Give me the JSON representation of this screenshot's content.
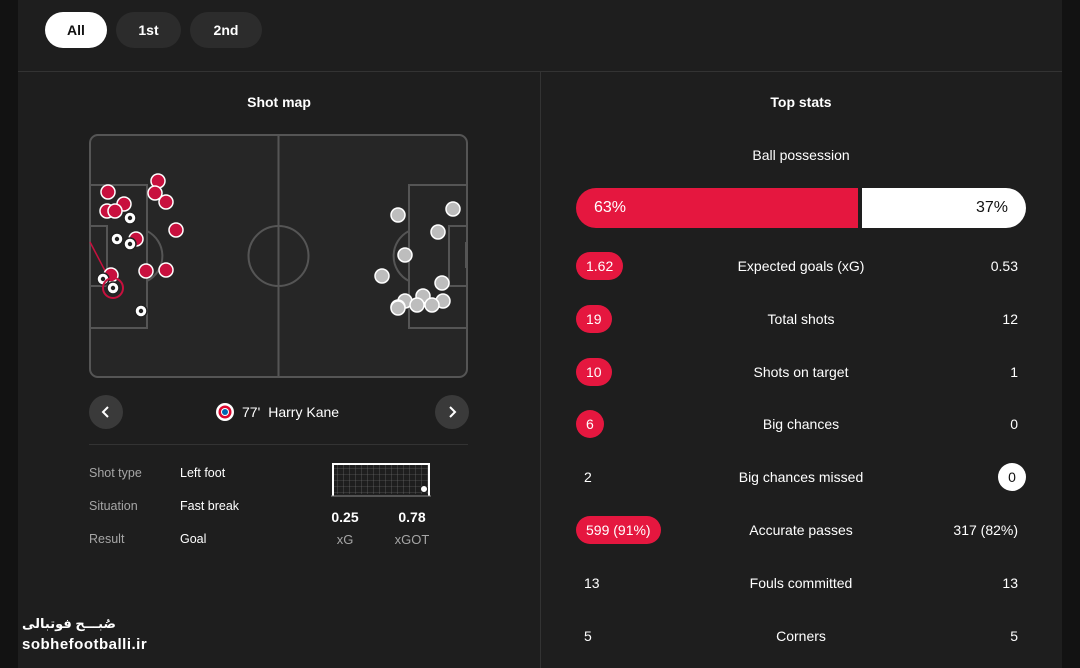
{
  "tabs": [
    {
      "label": "All",
      "active": true
    },
    {
      "label": "1st",
      "active": false
    },
    {
      "label": "2nd",
      "active": false
    }
  ],
  "shot_map": {
    "title": "Shot map",
    "home_color": "#c8103e",
    "away_color": "#bdbdbd",
    "selected_shot": {
      "minute": "77'",
      "player": "Harry Kane",
      "club_icon": "bayern-badge-icon",
      "details": [
        {
          "label": "Shot type",
          "value": "Left foot"
        },
        {
          "label": "Situation",
          "value": "Fast break"
        },
        {
          "label": "Result",
          "value": "Goal"
        }
      ],
      "xg": "0.25",
      "xg_label": "xG",
      "xgot": "0.78",
      "xgot_label": "xGOT"
    }
  },
  "top_stats": {
    "title": "Top stats",
    "possession": {
      "label": "Ball possession",
      "home": "63%",
      "away": "37%",
      "home_fraction": 0.63
    },
    "rows": [
      {
        "label": "Expected goals (xG)",
        "home": "1.62",
        "away": "0.53",
        "highlight": "home"
      },
      {
        "label": "Total shots",
        "home": "19",
        "away": "12",
        "highlight": "home"
      },
      {
        "label": "Shots on target",
        "home": "10",
        "away": "1",
        "highlight": "home"
      },
      {
        "label": "Big chances",
        "home": "6",
        "away": "0",
        "highlight": "home"
      },
      {
        "label": "Big chances missed",
        "home": "2",
        "away": "0",
        "highlight": "away"
      },
      {
        "label": "Accurate passes",
        "home": "599 (91%)",
        "away": "317 (82%)",
        "highlight": "home"
      },
      {
        "label": "Fouls committed",
        "home": "13",
        "away": "13",
        "highlight": "none"
      },
      {
        "label": "Corners",
        "home": "5",
        "away": "5",
        "highlight": "none"
      }
    ],
    "highlight_color": "#e5173f"
  },
  "watermark": {
    "persian": "صُبـــح فوتبالی",
    "site": "sobhefootballi.ir"
  }
}
